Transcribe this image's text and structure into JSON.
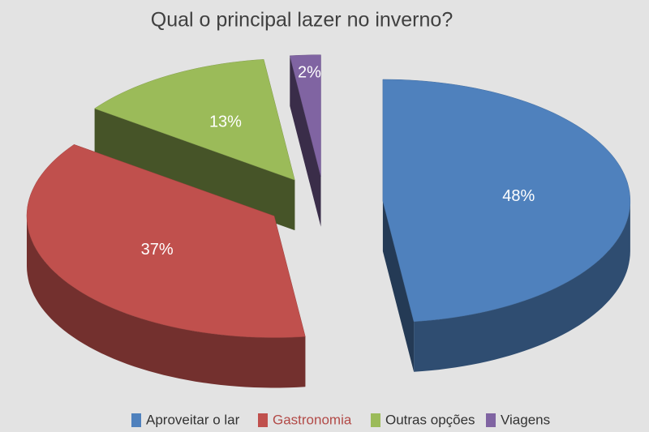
{
  "chart_data": {
    "type": "pie",
    "title": "Qual o principal lazer no inverno?",
    "categories": [
      "Aproveitar o lar",
      "Gastronomia",
      "Outras opções",
      "Viagens"
    ],
    "values": [
      48,
      37,
      13,
      2
    ],
    "value_labels": [
      "48%",
      "37%",
      "13%",
      "2%"
    ],
    "colors": [
      "#4f81bd",
      "#c0504d",
      "#9bbb59",
      "#8064a2"
    ],
    "legend": "bottom"
  }
}
